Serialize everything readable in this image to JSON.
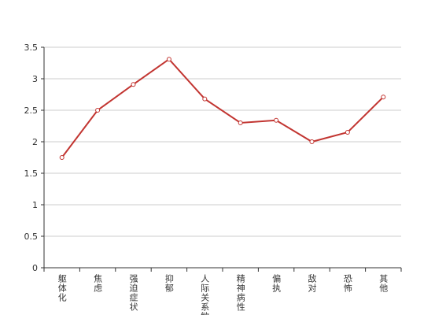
{
  "chart_data": {
    "type": "line",
    "categories": [
      "躯体化",
      "焦虑",
      "强迫症状",
      "抑郁",
      "人际关系敏感",
      "精神病性",
      "偏执",
      "敌对",
      "恐怖",
      "其他"
    ],
    "values": [
      1.75,
      2.5,
      2.91,
      3.31,
      2.68,
      2.3,
      2.34,
      2.0,
      2.15,
      2.71
    ],
    "color": "#c23531",
    "ylim": [
      0,
      3.5
    ],
    "yticks": [
      0,
      0.5,
      1,
      1.5,
      2,
      2.5,
      3,
      3.5
    ],
    "grid": true
  }
}
